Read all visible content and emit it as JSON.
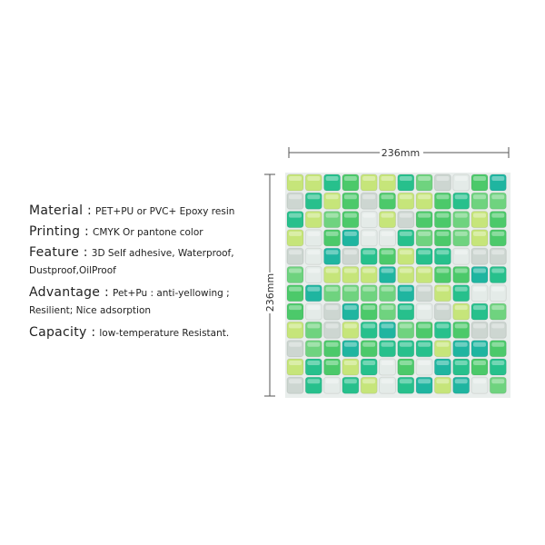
{
  "specs": [
    {
      "label": "Material  :",
      "value": "PET+PU or PVC+ Epoxy resin"
    },
    {
      "label": "Printing  :",
      "value": "CMYK Or pantone color"
    },
    {
      "label": "Feature  :",
      "value": "3D Self adhesive, Waterproof,",
      "continuation": "Dustproof,OilProof"
    },
    {
      "label": "Advantage  :",
      "value": "Pet+Pu : anti-yellowing ;",
      "continuation": "Resilient; Nice adsorption"
    },
    {
      "label": "Capacity :",
      "value": "low-temperature Resistant."
    }
  ],
  "dimensions": {
    "width": "236mm",
    "height": "236mm"
  }
}
